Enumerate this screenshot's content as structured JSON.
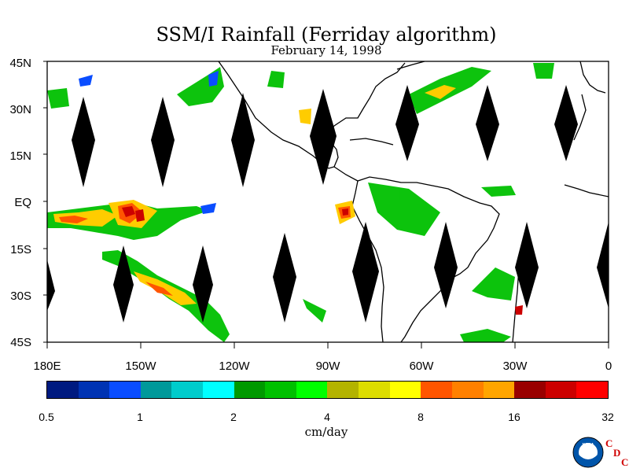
{
  "title": "SSM/I Rainfall (Ferriday algorithm)",
  "subtitle": "February 14, 1998",
  "lat_labels": [
    "45N",
    "30N",
    "15N",
    "EQ",
    "15S",
    "30S",
    "45S"
  ],
  "lon_labels": [
    "180E",
    "150W",
    "120W",
    "90W",
    "60W",
    "30W",
    "0"
  ],
  "colorbar": {
    "colors": [
      "#001a80",
      "#0033b3",
      "#0a4dff",
      "#00999a",
      "#00cccc",
      "#00ffff",
      "#009900",
      "#00c000",
      "#00ff00",
      "#b3b300",
      "#dddd00",
      "#ffff00",
      "#ff5500",
      "#ff8000",
      "#ffa500",
      "#990000",
      "#cc0000",
      "#ff0000"
    ],
    "tick_labels": [
      "0.5",
      "1",
      "2",
      "4",
      "8",
      "16",
      "32"
    ],
    "units": "cm/day"
  },
  "logo": {
    "noaa_text": "NOAA",
    "cdc_letters": [
      "C",
      "D",
      "C"
    ]
  }
}
